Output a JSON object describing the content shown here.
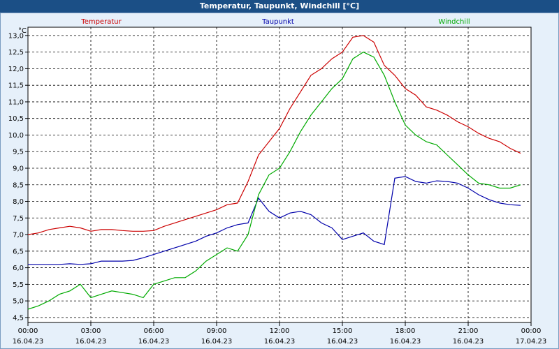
{
  "window": {
    "title": "Temperatur, Taupunkt, Windchill [°C]"
  },
  "chart_data": {
    "type": "line",
    "title": "Temperatur, Taupunkt, Windchill [°C]",
    "ylabel": "°C",
    "ylim": [
      4.35,
      13.25
    ],
    "yticks": [
      "4,5",
      "5,0",
      "5,5",
      "6,0",
      "6,5",
      "7,0",
      "7,5",
      "8,0",
      "8,5",
      "9,0",
      "9,5",
      "10,0",
      "10,5",
      "11,0",
      "11,5",
      "12,0",
      "12,5",
      "13,0"
    ],
    "xticks": [
      {
        "time": "00:00",
        "date": "16.04.23"
      },
      {
        "time": "03:00",
        "date": "16.04.23"
      },
      {
        "time": "06:00",
        "date": "16.04.23"
      },
      {
        "time": "09:00",
        "date": "16.04.23"
      },
      {
        "time": "12:00",
        "date": "16.04.23"
      },
      {
        "time": "15:00",
        "date": "16.04.23"
      },
      {
        "time": "18:00",
        "date": "16.04.23"
      },
      {
        "time": "21:00",
        "date": "16.04.23"
      },
      {
        "time": "00:00",
        "date": "17.04.23"
      }
    ],
    "x_unit": "hours",
    "grid": true,
    "legend_placement": "top",
    "series": [
      {
        "name": "Temperatur",
        "color": "#cc0000",
        "x": [
          0,
          0.5,
          1,
          1.5,
          2,
          2.5,
          3,
          3.5,
          4,
          4.5,
          5,
          5.5,
          6,
          6.5,
          7,
          7.5,
          8,
          8.5,
          9,
          9.5,
          10,
          10.5,
          11,
          11.5,
          12,
          12.5,
          13,
          13.5,
          14,
          14.5,
          15,
          15.5,
          16,
          16.5,
          17,
          17.5,
          18,
          18.5,
          19,
          19.5,
          20,
          20.5,
          21,
          21.5,
          22,
          22.5,
          23,
          23.5
        ],
        "y": [
          7.0,
          7.05,
          7.15,
          7.2,
          7.25,
          7.2,
          7.1,
          7.15,
          7.15,
          7.12,
          7.1,
          7.1,
          7.12,
          7.25,
          7.35,
          7.45,
          7.55,
          7.65,
          7.75,
          7.9,
          7.95,
          8.6,
          9.4,
          9.8,
          10.2,
          10.8,
          11.3,
          11.8,
          12.0,
          12.3,
          12.5,
          12.95,
          13.0,
          12.8,
          12.1,
          11.8,
          11.4,
          11.2,
          10.85,
          10.75,
          10.6,
          10.4,
          10.25,
          10.05,
          9.9,
          9.8,
          9.6,
          9.45
        ]
      },
      {
        "name": "Taupunkt",
        "color": "#0000aa",
        "x": [
          0,
          0.5,
          1,
          1.5,
          2,
          2.5,
          3,
          3.5,
          4,
          4.5,
          5,
          5.5,
          6,
          6.5,
          7,
          7.5,
          8,
          8.5,
          9,
          9.5,
          10,
          10.5,
          11,
          11.5,
          12,
          12.5,
          13,
          13.5,
          14,
          14.5,
          15,
          15.5,
          16,
          16.5,
          17,
          17.5,
          18,
          18.5,
          19,
          19.5,
          20,
          20.5,
          21,
          21.5,
          22,
          22.5,
          23,
          23.5
        ],
        "y": [
          6.1,
          6.1,
          6.1,
          6.1,
          6.12,
          6.1,
          6.12,
          6.2,
          6.2,
          6.2,
          6.22,
          6.3,
          6.4,
          6.5,
          6.6,
          6.7,
          6.8,
          6.95,
          7.05,
          7.2,
          7.3,
          7.35,
          8.1,
          7.7,
          7.5,
          7.65,
          7.7,
          7.6,
          7.35,
          7.2,
          6.85,
          6.95,
          7.05,
          6.8,
          6.7,
          8.7,
          8.75,
          8.6,
          8.55,
          8.62,
          8.6,
          8.55,
          8.4,
          8.2,
          8.05,
          7.95,
          7.9,
          7.88
        ]
      },
      {
        "name": "Windchill",
        "color": "#00aa00",
        "x": [
          0,
          0.5,
          1,
          1.5,
          2,
          2.5,
          3,
          3.5,
          4,
          4.5,
          5,
          5.5,
          6,
          6.5,
          7,
          7.5,
          8,
          8.5,
          9,
          9.5,
          10,
          10.5,
          11,
          11.5,
          12,
          12.5,
          13,
          13.5,
          14,
          14.5,
          15,
          15.5,
          16,
          16.5,
          17,
          17.5,
          18,
          18.5,
          19,
          19.5,
          20,
          20.5,
          21,
          21.5,
          22,
          22.5,
          23,
          23.5
        ],
        "y": [
          4.75,
          4.85,
          5.0,
          5.2,
          5.3,
          5.5,
          5.1,
          5.2,
          5.3,
          5.25,
          5.2,
          5.1,
          5.5,
          5.6,
          5.7,
          5.7,
          5.9,
          6.2,
          6.4,
          6.6,
          6.5,
          7.0,
          8.2,
          8.8,
          9.0,
          9.5,
          10.1,
          10.6,
          11.0,
          11.4,
          11.7,
          12.3,
          12.5,
          12.35,
          11.8,
          11.0,
          10.3,
          10.0,
          9.8,
          9.7,
          9.4,
          9.1,
          8.8,
          8.55,
          8.5,
          8.4,
          8.4,
          8.5
        ]
      }
    ]
  }
}
